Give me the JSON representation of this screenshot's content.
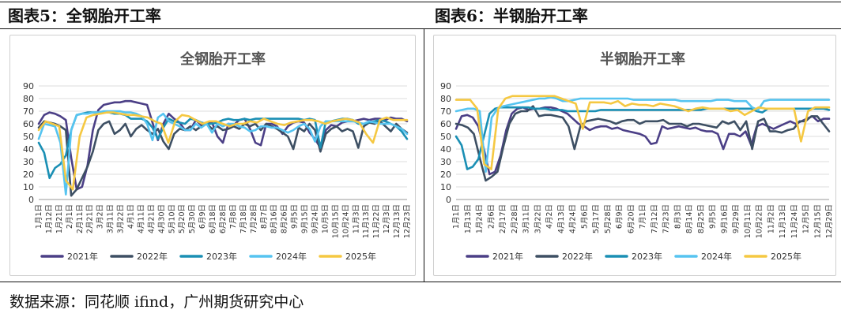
{
  "header": {
    "left_title": "图表5：全钢胎开工率",
    "right_title": "图表6：半钢胎开工率"
  },
  "footer": {
    "source": "数据来源：同花顺 ifind，广州期货研究中心"
  },
  "chart_data": [
    {
      "type": "line",
      "title": "全钢胎开工率",
      "ylim": [
        0,
        90
      ],
      "yticks": [
        0,
        10,
        20,
        30,
        40,
        50,
        60,
        70,
        80,
        90
      ],
      "grid": true,
      "legend_position": "bottom",
      "x_tick_labels": [
        "1月1日",
        "1月12日",
        "1月21日",
        "2月1日",
        "2月11日",
        "2月21日",
        "3月2日",
        "3月11日",
        "3月22日",
        "4月1日",
        "4月11日",
        "4月21日",
        "4月30日",
        "5月10日",
        "5月20日",
        "5月30日",
        "6月9日",
        "6月18日",
        "6月28日",
        "7月8日",
        "7月18日",
        "7月28日",
        "8月7日",
        "8月16日",
        "8月26日",
        "9月5日",
        "9月15日",
        "9月24日",
        "10月5日",
        "10月15日",
        "10月24日",
        "11月3日",
        "11月13日",
        "11月22日",
        "12月3日",
        "12月13日",
        "12月23日"
      ],
      "series": [
        {
          "name": "2021年",
          "color": "#4b3f86",
          "values": [
            60,
            67,
            69,
            68,
            66,
            63,
            33,
            8,
            10,
            27,
            55,
            71,
            75,
            76,
            77,
            77,
            78,
            78,
            77,
            76,
            75,
            61,
            47,
            60,
            68,
            64,
            61,
            55,
            55,
            63,
            59,
            60,
            61,
            50,
            45,
            60,
            59,
            63,
            64,
            56,
            45,
            43,
            60,
            60,
            58,
            52,
            58,
            61,
            62,
            61,
            53,
            48,
            41,
            55,
            59,
            58,
            61,
            62,
            62,
            63,
            64,
            63,
            64,
            64,
            63,
            65,
            64,
            64,
            62
          ]
        },
        {
          "name": "2022年",
          "color": "#3d4f63",
          "values": [
            57,
            62,
            61,
            60,
            58,
            55,
            3,
            8,
            17,
            26,
            38,
            55,
            60,
            62,
            52,
            55,
            60,
            50,
            56,
            59,
            55,
            52,
            56,
            46,
            40,
            52,
            56,
            55,
            58,
            55,
            58,
            60,
            56,
            58,
            55,
            56,
            58,
            56,
            60,
            58,
            60,
            55,
            60,
            58,
            56,
            53,
            50,
            40,
            57,
            54,
            60,
            55,
            38,
            52,
            56,
            58,
            54,
            56,
            54,
            41,
            58,
            61,
            60,
            62,
            58,
            54,
            60,
            56,
            53
          ]
        },
        {
          "name": "2023年",
          "color": "#1a8fb4",
          "values": [
            45,
            37,
            17,
            25,
            28,
            35,
            55,
            67,
            68,
            69,
            69,
            69,
            69,
            69,
            68,
            68,
            67,
            64,
            64,
            64,
            62,
            57,
            48,
            57,
            64,
            62,
            61,
            60,
            64,
            63,
            61,
            60,
            60,
            61,
            63,
            64,
            63,
            63,
            64,
            63,
            64,
            64,
            64,
            64,
            64,
            64,
            64,
            64,
            64,
            63,
            64,
            63,
            41,
            62,
            62,
            63,
            64,
            64,
            63,
            60,
            60,
            61,
            62,
            63,
            62,
            60,
            58,
            54,
            48
          ]
        },
        {
          "name": "2024年",
          "color": "#56c4f0",
          "values": [
            48,
            60,
            59,
            58,
            45,
            4,
            55,
            67,
            68,
            68,
            69,
            69,
            70,
            70,
            70,
            70,
            69,
            69,
            68,
            66,
            60,
            47,
            65,
            68,
            62,
            60,
            58,
            55,
            55,
            60,
            57,
            60,
            53,
            60,
            58,
            60,
            60,
            58,
            57,
            54,
            55,
            58,
            58,
            57,
            57,
            55,
            53,
            55,
            58,
            60,
            56,
            46,
            58,
            62,
            62,
            62,
            62,
            62,
            62,
            61,
            60,
            62,
            61,
            60,
            60,
            60,
            58,
            56,
            52
          ]
        },
        {
          "name": "2025年",
          "color": "#f5c842",
          "values": [
            55,
            62,
            60,
            58,
            15,
            8,
            50,
            65,
            67,
            68,
            69,
            69,
            68,
            67,
            67,
            66,
            65,
            62,
            60,
            45,
            62,
            67,
            66,
            63,
            60,
            62,
            62,
            60,
            58,
            60,
            60,
            62,
            61,
            64,
            62,
            60,
            59,
            61,
            62,
            63,
            63,
            62,
            60,
            62,
            63,
            64,
            63,
            61,
            52,
            45,
            63,
            65,
            63,
            63,
            63
          ]
        }
      ],
      "legend": [
        "2021年",
        "2022年",
        "2023年",
        "2024年",
        "2025年"
      ]
    },
    {
      "type": "line",
      "title": "半钢胎开工率",
      "ylim": [
        0,
        90
      ],
      "yticks": [
        0,
        10,
        20,
        30,
        40,
        50,
        60,
        70,
        80,
        90
      ],
      "grid": true,
      "legend_position": "bottom",
      "x_tick_labels": [
        "1月1日",
        "1月13日",
        "1月24日",
        "2月6日",
        "2月17日",
        "2月28日",
        "3月11日",
        "3月22日",
        "4月2日",
        "4月13日",
        "4月24日",
        "5月6日",
        "5月17日",
        "5月28日",
        "6月9日",
        "6月20日",
        "7月1日",
        "7月12日",
        "7月23日",
        "8月3日",
        "8月14日",
        "8月25日",
        "9月5日",
        "9月16日",
        "9月29日",
        "10月11日",
        "10月22日",
        "11月2日",
        "11月13日",
        "11月24日",
        "12月5日",
        "12月15日",
        "12月29日"
      ],
      "series": [
        {
          "name": "2021年",
          "color": "#4b3f86",
          "values": [
            56,
            66,
            67,
            65,
            58,
            40,
            20,
            22,
            35,
            55,
            68,
            72,
            73,
            71,
            72,
            72,
            73,
            73,
            72,
            70,
            68,
            64,
            60,
            58,
            55,
            57,
            58,
            58,
            56,
            57,
            55,
            54,
            53,
            52,
            50,
            44,
            45,
            58,
            56,
            57,
            58,
            57,
            56,
            57,
            55,
            54,
            54,
            52,
            40,
            52,
            52,
            50,
            54,
            43,
            58,
            60,
            58,
            56,
            58,
            60,
            62,
            60,
            62,
            64,
            66,
            62,
            64,
            64
          ]
        },
        {
          "name": "2022年",
          "color": "#3d4f63",
          "values": [
            60,
            59,
            57,
            52,
            33,
            15,
            18,
            22,
            42,
            60,
            68,
            70,
            70,
            74,
            66,
            67,
            67,
            66,
            65,
            58,
            40,
            58,
            62,
            63,
            64,
            63,
            62,
            60,
            62,
            63,
            63,
            60,
            62,
            62,
            62,
            63,
            60,
            60,
            60,
            58,
            60,
            60,
            59,
            58,
            57,
            62,
            60,
            62,
            55,
            62,
            40,
            62,
            64,
            54,
            54,
            53,
            55,
            56,
            62,
            62,
            66,
            66,
            60,
            54
          ]
        },
        {
          "name": "2023年",
          "color": "#1a8fb4",
          "values": [
            50,
            43,
            24,
            26,
            32,
            50,
            68,
            72,
            73,
            73,
            73,
            73,
            73,
            73,
            72,
            72,
            72,
            71,
            71,
            71,
            70,
            70,
            70,
            70,
            70,
            70,
            71,
            71,
            71,
            71,
            71,
            71,
            71,
            71,
            71,
            71,
            71,
            71,
            71,
            71,
            71,
            71,
            71,
            71,
            71,
            72,
            72,
            72,
            72,
            72,
            72,
            72,
            72,
            72,
            70,
            69,
            72,
            72,
            72,
            72,
            72,
            72,
            72,
            72,
            72,
            72,
            72,
            71
          ]
        },
        {
          "name": "2024年",
          "color": "#56c4f0",
          "values": [
            70,
            71,
            72,
            72,
            70,
            22,
            65,
            72,
            74,
            75,
            76,
            77,
            78,
            79,
            80,
            80,
            81,
            80,
            78,
            78,
            79,
            80,
            80,
            80,
            80,
            80,
            80,
            80,
            80,
            80,
            79,
            79,
            79,
            79,
            79,
            79,
            79,
            79,
            78,
            78,
            78,
            78,
            78,
            78,
            79,
            79,
            79,
            78,
            78,
            78,
            73,
            71,
            78,
            79,
            79,
            79,
            79,
            79,
            79,
            79,
            79,
            79,
            79,
            79
          ]
        },
        {
          "name": "2025年",
          "color": "#f5c842",
          "values": [
            79,
            79,
            79,
            72,
            28,
            24,
            72,
            80,
            82,
            82,
            82,
            82,
            82,
            82,
            82,
            80,
            78,
            76,
            56,
            77,
            77,
            77,
            76,
            78,
            74,
            76,
            75,
            75,
            74,
            76,
            75,
            74,
            72,
            70,
            72,
            73,
            72,
            72,
            72,
            70,
            71,
            67,
            70,
            73,
            72,
            72,
            72,
            72,
            72,
            46,
            70,
            73,
            73,
            73
          ]
        }
      ],
      "legend": [
        "2021年",
        "2022年",
        "2023年",
        "2024年",
        "2025年"
      ]
    }
  ]
}
